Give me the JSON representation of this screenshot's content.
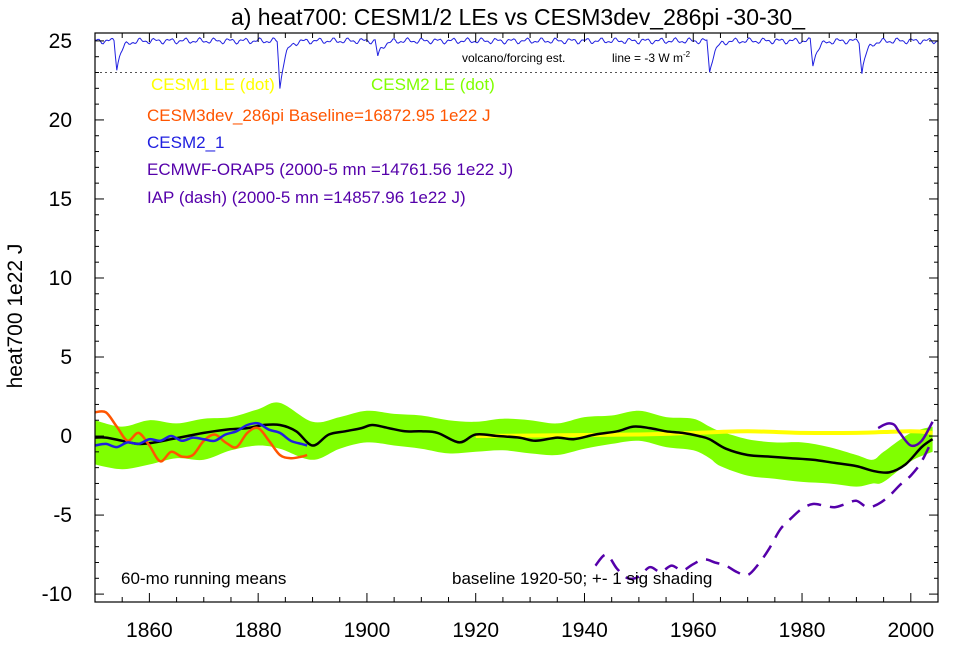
{
  "chart_data": {
    "type": "line",
    "title": "a) heat700: CESM1/2 LEs vs CESM3dev_286pi -30-30_",
    "ylabel": "heat700 1e22 J",
    "xlabel": "",
    "xlim": [
      1850,
      2005
    ],
    "ylim": [
      -10.5,
      25.5
    ],
    "x_ticks": [
      1860,
      1880,
      1900,
      1920,
      1940,
      1960,
      1980,
      2000
    ],
    "y_ticks": [
      -10,
      -5,
      0,
      5,
      10,
      15,
      20,
      25
    ],
    "grid": false,
    "legend": [
      {
        "text": "CESM1 LE (dot)",
        "color": "#ffff00"
      },
      {
        "text": "CESM2 LE (dot)",
        "color": "#80ff00"
      },
      {
        "text": "CESM3dev_286pi Baseline=16872.95 1e22 J",
        "color": "#ff5500"
      },
      {
        "text": "CESM2_1",
        "color": "#2020e0"
      },
      {
        "text": "ECMWF-ORAP5 (2000-5 mn =14761.56 1e22 J)",
        "color": "#5500aa"
      },
      {
        "text": "IAP (dash) (2000-5 mn =14857.96 1e22 J)",
        "color": "#5500aa"
      }
    ],
    "annotations": {
      "volcano_label": "volcano/forcing est.",
      "line_label": "line = -3 W m",
      "line_label_sup": "-2",
      "running_means": "60-mo running means",
      "baseline_note": "baseline 1920-50; +- 1 sig shading"
    },
    "volcano_ref_y": 23,
    "volcano_spikes": [
      {
        "x": 1854,
        "depth": 1.7
      },
      {
        "x": 1884,
        "depth": 3.0
      },
      {
        "x": 1902,
        "depth": 1.0
      },
      {
        "x": 1963,
        "depth": 2.0
      },
      {
        "x": 1982,
        "depth": 1.5
      },
      {
        "x": 1991,
        "depth": 2.0
      }
    ],
    "series": [
      {
        "name": "CESM2 LE spread",
        "kind": "band",
        "color": "#80ff00",
        "x": [
          1850,
          1855,
          1860,
          1865,
          1870,
          1875,
          1880,
          1884,
          1890,
          1895,
          1900,
          1905,
          1910,
          1915,
          1920,
          1925,
          1930,
          1935,
          1940,
          1945,
          1950,
          1955,
          1960,
          1963,
          1965,
          1970,
          1975,
          1980,
          1985,
          1990,
          1993,
          1995,
          2000,
          2004
        ],
        "upper": [
          1.0,
          0.6,
          1.0,
          0.8,
          1.1,
          1.2,
          1.7,
          2.1,
          0.9,
          1.2,
          1.6,
          1.4,
          1.3,
          1.0,
          0.9,
          1.1,
          1.0,
          0.8,
          1.2,
          1.3,
          1.6,
          1.2,
          1.1,
          0.6,
          0.3,
          -0.2,
          -0.4,
          -0.4,
          -0.7,
          -1.2,
          -1.5,
          -1.0,
          0.2,
          0.6
        ],
        "lower": [
          -1.8,
          -2.1,
          -1.8,
          -1.4,
          -1.5,
          -0.9,
          -0.6,
          -0.8,
          -1.5,
          -0.8,
          -0.4,
          -0.6,
          -0.8,
          -1.1,
          -1.0,
          -0.9,
          -1.1,
          -1.2,
          -0.8,
          -0.5,
          -0.3,
          -0.7,
          -0.9,
          -1.4,
          -1.9,
          -2.5,
          -2.7,
          -2.9,
          -3.0,
          -3.2,
          -3.0,
          -2.9,
          -1.6,
          -1.0
        ]
      },
      {
        "name": "CESM1 LE",
        "kind": "line",
        "color": "#ffff00",
        "width": 4,
        "x": [
          1920,
          1950,
          1960,
          1970,
          1980,
          1990,
          2000,
          2004
        ],
        "y": [
          0.0,
          0.1,
          0.2,
          0.3,
          0.2,
          0.2,
          0.3,
          0.2
        ]
      },
      {
        "name": "CESM2 LE mean",
        "kind": "line",
        "color": "#000000",
        "width": 2.5,
        "x": [
          1850,
          1852,
          1855,
          1858,
          1861,
          1864,
          1867,
          1870,
          1874,
          1878,
          1881,
          1884,
          1887,
          1890,
          1893,
          1896,
          1899,
          1901,
          1904,
          1907,
          1910,
          1913,
          1917,
          1920,
          1924,
          1928,
          1931,
          1935,
          1938,
          1942,
          1946,
          1949,
          1952,
          1955,
          1958,
          1961,
          1963,
          1966,
          1970,
          1974,
          1978,
          1982,
          1986,
          1990,
          1993,
          1996,
          1999,
          2002,
          2004
        ],
        "y": [
          -0.1,
          -0.1,
          -0.3,
          -0.5,
          -0.4,
          -0.2,
          0.0,
          0.2,
          0.4,
          0.5,
          0.7,
          0.7,
          0.3,
          -0.6,
          0.1,
          0.3,
          0.5,
          0.7,
          0.5,
          0.3,
          0.3,
          0.2,
          -0.4,
          0.1,
          0.0,
          -0.1,
          -0.3,
          -0.1,
          -0.2,
          0.1,
          0.3,
          0.6,
          0.5,
          0.3,
          0.2,
          0.0,
          -0.2,
          -0.8,
          -1.2,
          -1.3,
          -1.4,
          -1.5,
          -1.7,
          -1.9,
          -2.2,
          -2.3,
          -1.8,
          -0.7,
          -0.2
        ]
      },
      {
        "name": "CESM3dev_286pi",
        "kind": "line",
        "color": "#ff5500",
        "width": 2.5,
        "x": [
          1850,
          1852,
          1854,
          1856,
          1858,
          1860,
          1862,
          1864,
          1866,
          1868,
          1870,
          1872,
          1874,
          1876,
          1878,
          1880,
          1882,
          1884,
          1886,
          1888,
          1889
        ],
        "y": [
          1.5,
          1.5,
          0.6,
          -0.3,
          0.2,
          -0.6,
          -1.6,
          -1.0,
          -1.3,
          -1.2,
          -0.3,
          0.1,
          -0.4,
          -0.7,
          0.2,
          0.5,
          -0.3,
          -1.2,
          -1.4,
          -1.3,
          -1.2
        ]
      },
      {
        "name": "CESM2_1",
        "kind": "line",
        "color": "#2020e0",
        "width": 2.5,
        "x": [
          1850,
          1852,
          1854,
          1856,
          1858,
          1860,
          1862,
          1864,
          1866,
          1868,
          1870,
          1872,
          1874,
          1876,
          1878,
          1880,
          1882,
          1884,
          1886,
          1888,
          1889
        ],
        "y": [
          -0.6,
          -0.5,
          -0.7,
          -0.4,
          -0.5,
          -0.2,
          -0.3,
          0.0,
          -0.3,
          -0.1,
          -0.2,
          -0.3,
          0.1,
          0.3,
          0.7,
          0.8,
          0.4,
          0.2,
          -0.3,
          -0.5,
          -0.6
        ]
      },
      {
        "name": "ECMWF-ORAP5",
        "kind": "line",
        "color": "#5500aa",
        "width": 2.5,
        "x": [
          1994,
          1995,
          1996,
          1997,
          1998,
          2000,
          2002,
          2004
        ],
        "y": [
          0.5,
          0.7,
          0.8,
          0.7,
          0.2,
          -0.6,
          -0.3,
          0.9
        ]
      },
      {
        "name": "IAP",
        "kind": "line",
        "dashed": true,
        "color": "#5500aa",
        "width": 2.5,
        "x": [
          1942,
          1944,
          1946,
          1948,
          1950,
          1952,
          1954,
          1956,
          1958,
          1960,
          1962,
          1964,
          1966,
          1968,
          1970,
          1972,
          1974,
          1976,
          1978,
          1980,
          1982,
          1984,
          1986,
          1988,
          1990,
          1992,
          1994,
          1996,
          1998,
          2000,
          2002,
          2004
        ],
        "y": [
          -8.2,
          -7.5,
          -8.4,
          -9.0,
          -8.9,
          -8.3,
          -8.6,
          -8.2,
          -8.5,
          -8.1,
          -7.8,
          -8.0,
          -8.2,
          -8.6,
          -8.8,
          -8.1,
          -7.1,
          -5.9,
          -5.2,
          -4.6,
          -4.3,
          -4.4,
          -4.5,
          -4.3,
          -4.1,
          -4.5,
          -4.3,
          -3.8,
          -3.1,
          -2.5,
          -1.6,
          -0.2
        ]
      }
    ]
  }
}
